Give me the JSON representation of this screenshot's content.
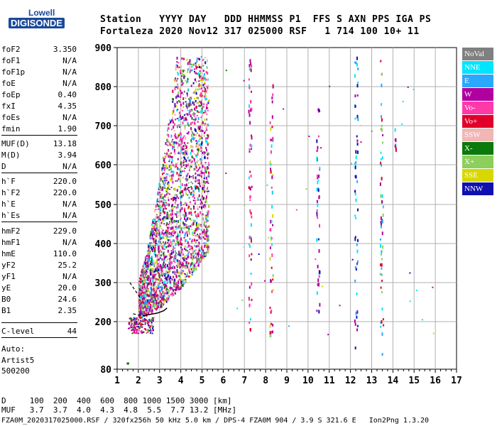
{
  "logo": {
    "top": "Lowell",
    "bottom": "DIGISONDE"
  },
  "header": {
    "row1": "Station   YYYY DAY   DDD HHMMSS P1  FFS S AXN PPS IGA PS",
    "row2": "Fortaleza 2020 Nov12 317 025000 RSF   1 714 100 10+ 11"
  },
  "params": [
    {
      "name": "foF2",
      "value": "3.350"
    },
    {
      "name": "foF1",
      "value": "N/A"
    },
    {
      "name": "foF1p",
      "value": "N/A"
    },
    {
      "name": "foE",
      "value": "N/A"
    },
    {
      "name": "foEp",
      "value": "0.40"
    },
    {
      "name": "fxI",
      "value": "4.35"
    },
    {
      "name": "foEs",
      "value": "N/A"
    },
    {
      "name": "fmin",
      "value": "1.90"
    },
    {
      "name": "MUF(D)",
      "value": "13.18"
    },
    {
      "name": "M(D)",
      "value": "3.94"
    },
    {
      "name": "D",
      "value": "N/A"
    },
    {
      "name": "h`F",
      "value": "220.0"
    },
    {
      "name": "h`F2",
      "value": "220.0"
    },
    {
      "name": "h`E",
      "value": "N/A"
    },
    {
      "name": "h`Es",
      "value": "N/A"
    },
    {
      "name": "hmF2",
      "value": "229.0"
    },
    {
      "name": "hmF1",
      "value": "N/A"
    },
    {
      "name": "hmE",
      "value": "110.0"
    },
    {
      "name": "yF2",
      "value": "25.2"
    },
    {
      "name": "yF1",
      "value": "N/A"
    },
    {
      "name": "yE",
      "value": "20.0"
    },
    {
      "name": "B0",
      "value": "24.6"
    },
    {
      "name": "B1",
      "value": "2.35"
    },
    {
      "name": "C-level",
      "value": "44"
    }
  ],
  "auto": {
    "line1": "Auto:",
    "line2": "Artist5",
    "line3": "500200"
  },
  "legend": [
    {
      "label": "NoVal",
      "color": "#808080",
      "text_color": "#ffffff"
    },
    {
      "label": "NNE",
      "color": "#00e5ff",
      "text_color": "#ffffff"
    },
    {
      "label": "E",
      "color": "#2aa7ff",
      "text_color": "#ffffff"
    },
    {
      "label": "W",
      "color": "#b000a0",
      "text_color": "#ffffff"
    },
    {
      "label": "Vo-",
      "color": "#ff3aa8",
      "text_color": "#ffffff"
    },
    {
      "label": "Vo+",
      "color": "#e0002a",
      "text_color": "#ffffff"
    },
    {
      "label": "SSW",
      "color": "#f2b6b6",
      "text_color": "#ffffff"
    },
    {
      "label": "X-",
      "color": "#0a7a0a",
      "text_color": "#ffffff"
    },
    {
      "label": "X+",
      "color": "#8ccf5a",
      "text_color": "#ffffff"
    },
    {
      "label": "SSE",
      "color": "#d8d800",
      "text_color": "#ffffff"
    },
    {
      "label": "NNW",
      "color": "#1010b0",
      "text_color": "#ffffff"
    }
  ],
  "footer": {
    "d_row": "D     100  200  400  600  800 1000 1500 3000 [km]",
    "muf_row": "MUF   3.7  3.7  4.0  4.3  4.8  5.5  7.7 13.2 [MHz]",
    "file_row": "FZA0M_2020317025000.RSF / 320fx256h 50 kHz 5.0 km / DPS-4 FZA0M 904 / 3.9 S 321.6 E   Ion2Png 1.3.20"
  },
  "chart_data": {
    "type": "scatter",
    "title": "",
    "xlabel": "",
    "ylabel": "",
    "xlim": [
      1,
      17
    ],
    "ylim": [
      80,
      900
    ],
    "x_ticks": [
      1,
      2,
      3,
      4,
      5,
      6,
      7,
      8,
      9,
      10,
      11,
      12,
      13,
      14,
      15,
      16,
      17
    ],
    "y_ticks": [
      80,
      200,
      300,
      400,
      500,
      600,
      700,
      800,
      900
    ],
    "grid": true,
    "series": [
      {
        "name": "W",
        "color": "#b000a0",
        "note_points": [
          [
            7.2,
            870
          ],
          [
            8.2,
            830
          ],
          [
            10.5,
            780
          ],
          [
            13.5,
            690
          ],
          [
            12.2,
            520
          ]
        ]
      },
      {
        "name": "NNE",
        "color": "#00e5ff",
        "note_points": [
          [
            12.2,
            880
          ],
          [
            13.5,
            800
          ],
          [
            12.2,
            250
          ]
        ]
      },
      {
        "name": "NNW",
        "color": "#1010b0",
        "note_points": [
          [
            10.4,
            790
          ],
          [
            10.4,
            250
          ],
          [
            12.2,
            130
          ]
        ]
      }
    ],
    "trace_curve": {
      "x": [
        2.2,
        2.5,
        2.9,
        3.2,
        3.35
      ],
      "y": [
        215,
        218,
        222,
        228,
        235
      ]
    }
  }
}
